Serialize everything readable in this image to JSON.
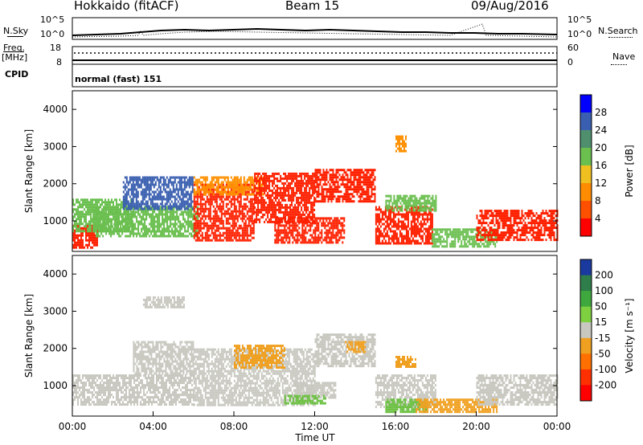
{
  "header": {
    "station": "Hokkaido (fitACF)",
    "beam": "Beam 15",
    "date": "09/Aug/2016"
  },
  "top_panels": {
    "nsky_label": "N.Sky",
    "nsearch_label": "N.Search",
    "nsky_ticks": [
      "10^5",
      "10^0"
    ],
    "nsky_right_ticks": [
      "10^5",
      "10^0"
    ],
    "freq_label": "Freq.",
    "freq_unit": "[MHz]",
    "freq_ticks": [
      "18",
      "8"
    ],
    "nave_label": "Nave",
    "nave_ticks": [
      "60",
      "0"
    ],
    "cpid_label": "CPID",
    "cpid_value": "normal (fast) 151"
  },
  "chart_data": [
    {
      "type": "heatmap",
      "name": "power-panel",
      "ylabel": "Slant Range [km]",
      "xlabel": "",
      "xlim": [
        0,
        24
      ],
      "ylim": [
        180,
        4500
      ],
      "y_ticks": [
        "1000",
        "2000",
        "3000",
        "4000"
      ],
      "colorbar": {
        "label": "Power [dB]",
        "ticks": [
          "4",
          "8",
          "12",
          "16",
          "20",
          "24",
          "28"
        ],
        "colors": [
          "#0000ff",
          "#3a5fb0",
          "#4f8f6e",
          "#6abf4f",
          "#f0c020",
          "#ff8c00",
          "#ff5000",
          "#ff0000"
        ]
      },
      "regions": [
        {
          "t0": 0.0,
          "t1": 1.2,
          "r0": 300,
          "r1": 900,
          "level": "red"
        },
        {
          "t0": 0.0,
          "t1": 3.0,
          "r0": 700,
          "r1": 1600,
          "level": "green"
        },
        {
          "t0": 1.0,
          "t1": 6.2,
          "r0": 600,
          "r1": 1400,
          "level": "green"
        },
        {
          "t0": 2.5,
          "t1": 6.0,
          "r0": 1300,
          "r1": 2200,
          "level": "blue"
        },
        {
          "t0": 6.0,
          "t1": 9.0,
          "r0": 500,
          "r1": 2000,
          "level": "red"
        },
        {
          "t0": 6.0,
          "t1": 9.5,
          "r0": 1700,
          "r1": 2200,
          "level": "orange"
        },
        {
          "t0": 9.0,
          "t1": 12.0,
          "r0": 1000,
          "r1": 2300,
          "level": "red"
        },
        {
          "t0": 10.0,
          "t1": 13.5,
          "r0": 400,
          "r1": 1100,
          "level": "red"
        },
        {
          "t0": 12.0,
          "t1": 15.0,
          "r0": 1500,
          "r1": 2400,
          "level": "red"
        },
        {
          "t0": 15.0,
          "t1": 17.8,
          "r0": 400,
          "r1": 1400,
          "level": "red"
        },
        {
          "t0": 15.5,
          "t1": 18.0,
          "r0": 1300,
          "r1": 1700,
          "level": "green"
        },
        {
          "t0": 16.0,
          "t1": 16.5,
          "r0": 2900,
          "r1": 3300,
          "level": "orange"
        },
        {
          "t0": 17.8,
          "t1": 21.0,
          "r0": 300,
          "r1": 800,
          "level": "green"
        },
        {
          "t0": 20.0,
          "t1": 24.0,
          "r0": 500,
          "r1": 1300,
          "level": "red"
        }
      ]
    },
    {
      "type": "heatmap",
      "name": "velocity-panel",
      "ylabel": "Slant Range [km]",
      "xlabel": "Time UT",
      "xlim": [
        0,
        24
      ],
      "ylim": [
        180,
        4500
      ],
      "x_ticks": [
        "00:00",
        "04:00",
        "08:00",
        "12:00",
        "16:00",
        "20:00",
        "00:00"
      ],
      "y_ticks": [
        "1000",
        "2000",
        "3000",
        "4000"
      ],
      "colorbar": {
        "label": "Velocity [m s⁻¹]",
        "ticks": [
          "200",
          "100",
          "50",
          "15",
          "-15",
          "-50",
          "-100",
          "-200"
        ],
        "colors": [
          "#1a3aa0",
          "#2e7d4a",
          "#3ea83e",
          "#7fd040",
          "#c8c8c0",
          "#f0a020",
          "#ff7000",
          "#ff3000",
          "#ff0000"
        ]
      },
      "regions": [
        {
          "t0": 0.0,
          "t1": 6.0,
          "r0": 500,
          "r1": 1300,
          "level": "gray"
        },
        {
          "t0": 3.0,
          "t1": 6.0,
          "r0": 1300,
          "r1": 2200,
          "level": "gray"
        },
        {
          "t0": 6.0,
          "t1": 12.0,
          "r0": 500,
          "r1": 2000,
          "level": "gray"
        },
        {
          "t0": 8.0,
          "t1": 10.5,
          "r0": 1500,
          "r1": 2100,
          "level": "orange"
        },
        {
          "t0": 12.0,
          "t1": 15.0,
          "r0": 1500,
          "r1": 2400,
          "level": "gray"
        },
        {
          "t0": 13.5,
          "t1": 14.5,
          "r0": 1900,
          "r1": 2200,
          "level": "orange"
        },
        {
          "t0": 11.0,
          "t1": 13.0,
          "r0": 700,
          "r1": 1100,
          "level": "gray"
        },
        {
          "t0": 10.5,
          "t1": 12.5,
          "r0": 550,
          "r1": 750,
          "level": "green"
        },
        {
          "t0": 15.0,
          "t1": 18.0,
          "r0": 400,
          "r1": 1300,
          "level": "gray"
        },
        {
          "t0": 16.0,
          "t1": 17.0,
          "r0": 1500,
          "r1": 1800,
          "level": "orange"
        },
        {
          "t0": 15.5,
          "t1": 17.5,
          "r0": 300,
          "r1": 650,
          "level": "green"
        },
        {
          "t0": 17.0,
          "t1": 21.0,
          "r0": 300,
          "r1": 650,
          "level": "orange"
        },
        {
          "t0": 20.0,
          "t1": 24.0,
          "r0": 500,
          "r1": 1300,
          "level": "gray"
        },
        {
          "t0": 3.5,
          "t1": 5.5,
          "r0": 3100,
          "r1": 3400,
          "level": "gray"
        }
      ]
    }
  ]
}
